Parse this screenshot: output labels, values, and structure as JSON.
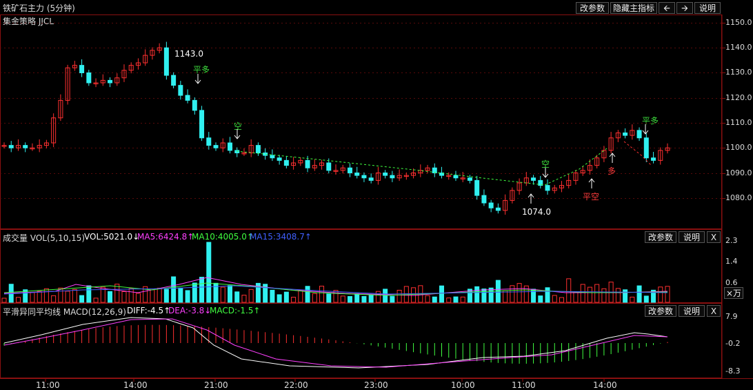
{
  "header": {
    "title": "铁矿石主力 (5分钟)",
    "buttons": {
      "params": "改参数",
      "hide": "隐藏主指标",
      "help": "说明"
    },
    "strategy": "集金策略 JJCL"
  },
  "price_axis": [
    "1150.0",
    "1140.0",
    "1130.0",
    "1120.0",
    "1110.0",
    "1100.0",
    "1090.0",
    "1080.0"
  ],
  "annotations": {
    "high": "1143.0",
    "low": "1074.0",
    "signals": [
      {
        "text": "平多",
        "color": "#3ddc3d"
      },
      {
        "text": "空",
        "color": "#3ddc3d"
      },
      {
        "text": "空",
        "color": "#3ddc3d"
      },
      {
        "text": "平空",
        "color": "#ff3b3b"
      },
      {
        "text": "多",
        "color": "#ff3b3b"
      },
      {
        "text": "平多",
        "color": "#3ddc3d"
      }
    ]
  },
  "volume": {
    "label": "成交量 VOL(5,10,15)",
    "vol": "VOL:5021.0↓",
    "ma5": "MA5:6424.8↑",
    "ma10": "MA10:4005.0↑",
    "ma15": "MA15:3408.7↑",
    "axis": [
      "2.3",
      "1.4",
      "0.6"
    ],
    "unit": "×万",
    "buttons": {
      "params": "改参数",
      "help": "说明",
      "close": "X"
    }
  },
  "macd": {
    "label": "平滑异同平均线 MACD(12,26,9)",
    "diff": "DIFF:-4.5↑",
    "dea": "DEA:-3.8↓",
    "macd": "MACD:-1.5↑",
    "axis": [
      "7.9",
      "-0.2",
      "-8.3"
    ],
    "buttons": {
      "params": "改参数",
      "help": "说明",
      "close": "X"
    }
  },
  "time_axis": [
    "11:00",
    "14:00",
    "21:00",
    "22:00",
    "23:00",
    "10:00",
    "11:00",
    "14:00"
  ],
  "colors": {
    "up": "#ff3030",
    "down": "#30f0f0",
    "ma5": "#ff40ff",
    "ma10": "#40ff40",
    "ma15": "#4060ff",
    "diff": "#ffffff",
    "dea": "#ff40ff"
  }
}
